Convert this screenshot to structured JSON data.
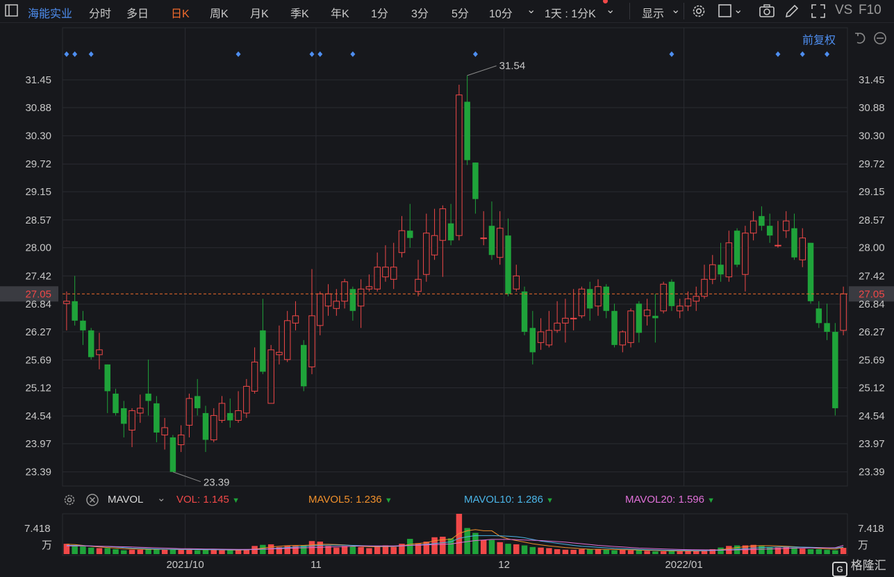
{
  "toolbar": {
    "stock_name": "海能实业",
    "tabs": [
      "分时",
      "多日",
      "日K",
      "周K",
      "月K",
      "季K",
      "年K",
      "1分",
      "3分",
      "5分",
      "10分"
    ],
    "active_tab": "日K",
    "period_select": "1天 : 1分K",
    "display_label": "显示",
    "vs_label": "VS",
    "f10_label": "F10"
  },
  "fuquan_label": "前复权",
  "current_price_label": "27.05",
  "price_axis_ticks": [
    "31.45",
    "30.88",
    "30.30",
    "29.72",
    "29.15",
    "28.57",
    "28.00",
    "27.42",
    "26.84",
    "26.27",
    "25.69",
    "25.12",
    "24.54",
    "23.97",
    "23.39"
  ],
  "high_marker": "31.54",
  "low_marker": "23.39",
  "mavol": {
    "indicator": "MAVOL",
    "vol_label": "VOL:",
    "vol_value": "1.145",
    "ma5_label": "MAVOL5:",
    "ma5_value": "1.236",
    "ma10_label": "MAVOL10:",
    "ma10_value": "1.286",
    "ma20_label": "MAVOL20:",
    "ma20_value": "1.596"
  },
  "volume_axis": {
    "max_label": "7.418",
    "unit": "万"
  },
  "x_axis_labels": [
    "2021/10",
    "11",
    "12",
    "2022/01"
  ],
  "watermark": "格隆汇",
  "colors": {
    "up": "#f04848",
    "down": "#1fa33a",
    "bg": "#17181c",
    "grid": "#2a2b31",
    "accent": "#4e8ef0",
    "price_line": "#f06a2c"
  },
  "chart_data": {
    "type": "candlestick",
    "price_range": [
      23.1,
      31.95
    ],
    "ohlc": [
      [
        26.85,
        26.9,
        26.3,
        27.1
      ],
      [
        26.9,
        26.5,
        26.4,
        27.42
      ],
      [
        26.5,
        26.3,
        26.0,
        26.7
      ],
      [
        26.3,
        25.75,
        25.7,
        26.35
      ],
      [
        25.8,
        25.9,
        25.5,
        26.25
      ],
      [
        25.6,
        25.05,
        24.6,
        25.6
      ],
      [
        25.0,
        24.6,
        24.55,
        25.1
      ],
      [
        24.7,
        24.38,
        24.1,
        24.85
      ],
      [
        24.25,
        24.65,
        23.9,
        24.7
      ],
      [
        24.6,
        24.7,
        24.4,
        24.98
      ],
      [
        25.0,
        24.85,
        24.55,
        25.7
      ],
      [
        24.8,
        24.2,
        24.0,
        24.95
      ],
      [
        24.15,
        24.3,
        23.85,
        24.5
      ],
      [
        24.1,
        23.39,
        23.39,
        24.15
      ],
      [
        23.95,
        24.15,
        23.8,
        24.35
      ],
      [
        24.35,
        24.9,
        24.1,
        25.0
      ],
      [
        24.95,
        24.7,
        24.55,
        25.3
      ],
      [
        24.6,
        24.05,
        23.8,
        24.75
      ],
      [
        24.05,
        24.55,
        24.0,
        24.7
      ],
      [
        24.45,
        24.8,
        24.4,
        24.95
      ],
      [
        24.6,
        24.45,
        24.3,
        24.9
      ],
      [
        24.45,
        24.65,
        24.4,
        25.05
      ],
      [
        24.6,
        25.15,
        24.5,
        25.3
      ],
      [
        25.05,
        25.65,
        25.0,
        25.95
      ],
      [
        26.3,
        25.45,
        25.4,
        26.95
      ],
      [
        24.8,
        25.9,
        24.8,
        26.0
      ],
      [
        25.8,
        25.85,
        25.6,
        26.4
      ],
      [
        25.7,
        26.5,
        25.65,
        26.7
      ],
      [
        26.45,
        26.6,
        26.3,
        26.9
      ],
      [
        26.0,
        25.15,
        25.05,
        26.1
      ],
      [
        25.55,
        26.6,
        25.4,
        27.56
      ],
      [
        26.4,
        27.05,
        26.2,
        27.1
      ],
      [
        26.8,
        27.05,
        26.6,
        27.25
      ],
      [
        26.75,
        26.9,
        26.6,
        27.15
      ],
      [
        26.9,
        27.3,
        26.75,
        27.36
      ],
      [
        27.15,
        26.7,
        26.5,
        27.2
      ],
      [
        26.8,
        27.15,
        26.35,
        27.35
      ],
      [
        27.15,
        27.2,
        27.1,
        27.45
      ],
      [
        27.15,
        27.6,
        27.1,
        27.9
      ],
      [
        27.4,
        27.6,
        27.3,
        28.05
      ],
      [
        27.35,
        27.6,
        27.15,
        28.1
      ],
      [
        27.9,
        28.35,
        27.8,
        28.65
      ],
      [
        28.35,
        28.2,
        28.0,
        28.9
      ],
      [
        27.1,
        27.35,
        27.0,
        27.75
      ],
      [
        27.45,
        28.3,
        27.3,
        28.7
      ],
      [
        27.85,
        28.25,
        27.75,
        28.8
      ],
      [
        28.15,
        28.8,
        27.4,
        28.87
      ],
      [
        28.5,
        28.15,
        28.05,
        28.9
      ],
      [
        28.25,
        31.14,
        28.15,
        31.35
      ],
      [
        31.0,
        29.8,
        29.7,
        31.54
      ],
      [
        29.75,
        29.0,
        28.7,
        29.75
      ],
      [
        28.2,
        28.2,
        28.05,
        28.75
      ],
      [
        28.45,
        27.85,
        27.75,
        28.95
      ],
      [
        27.8,
        28.4,
        27.65,
        28.75
      ],
      [
        28.25,
        27.05,
        27.0,
        28.6
      ],
      [
        27.15,
        27.42,
        27.1,
        27.65
      ],
      [
        27.1,
        26.27,
        26.2,
        27.2
      ],
      [
        26.35,
        25.85,
        25.6,
        26.7
      ],
      [
        26.05,
        26.27,
        25.9,
        26.55
      ],
      [
        26.0,
        26.3,
        25.95,
        26.7
      ],
      [
        26.3,
        26.45,
        26.25,
        26.9
      ],
      [
        26.45,
        26.55,
        26.05,
        26.95
      ],
      [
        26.55,
        26.55,
        26.3,
        27.15
      ],
      [
        26.6,
        27.15,
        26.55,
        27.2
      ],
      [
        27.15,
        26.75,
        26.5,
        27.3
      ],
      [
        26.8,
        27.2,
        26.6,
        27.35
      ],
      [
        27.2,
        26.7,
        26.55,
        27.25
      ],
      [
        26.7,
        26.0,
        25.95,
        26.85
      ],
      [
        26.0,
        26.27,
        25.85,
        26.3
      ],
      [
        26.05,
        26.7,
        25.95,
        26.75
      ],
      [
        26.85,
        26.25,
        26.05,
        26.9
      ],
      [
        26.6,
        26.72,
        26.4,
        26.95
      ],
      [
        26.6,
        26.55,
        26.05,
        27.05
      ],
      [
        26.7,
        27.25,
        26.65,
        27.3
      ],
      [
        27.3,
        26.8,
        26.7,
        27.35
      ],
      [
        26.7,
        26.8,
        26.55,
        26.95
      ],
      [
        26.8,
        26.95,
        26.7,
        27.1
      ],
      [
        26.9,
        27.0,
        26.7,
        27.2
      ],
      [
        27.0,
        27.35,
        26.95,
        27.65
      ],
      [
        27.35,
        27.65,
        27.25,
        27.85
      ],
      [
        27.65,
        27.45,
        27.3,
        28.1
      ],
      [
        27.4,
        28.1,
        27.3,
        28.35
      ],
      [
        28.35,
        27.65,
        27.6,
        28.4
      ],
      [
        27.45,
        28.3,
        27.1,
        28.45
      ],
      [
        28.3,
        28.55,
        28.15,
        28.75
      ],
      [
        28.65,
        28.45,
        28.35,
        28.85
      ],
      [
        28.45,
        28.25,
        28.1,
        28.7
      ],
      [
        28.05,
        28.05,
        28.0,
        28.55
      ],
      [
        28.35,
        28.55,
        28.2,
        28.75
      ],
      [
        28.4,
        27.8,
        27.75,
        28.7
      ],
      [
        27.75,
        28.2,
        27.6,
        28.4
      ],
      [
        28.1,
        26.9,
        26.85,
        28.1
      ],
      [
        26.75,
        26.45,
        26.35,
        26.9
      ],
      [
        26.45,
        26.27,
        26.1,
        26.85
      ],
      [
        26.27,
        24.7,
        24.55,
        26.45
      ],
      [
        26.3,
        27.05,
        26.2,
        27.2
      ]
    ],
    "volume_range": [
      0,
      7.418
    ],
    "volumes": [
      1.9,
      1.6,
      1.4,
      1.2,
      1.1,
      1.1,
      0.9,
      0.7,
      0.8,
      0.8,
      1.0,
      0.9,
      0.8,
      0.9,
      0.8,
      0.8,
      0.7,
      0.8,
      0.8,
      0.7,
      0.7,
      0.7,
      0.9,
      1.5,
      1.7,
      1.8,
      1.3,
      1.6,
      1.5,
      1.6,
      2.4,
      2.3,
      1.5,
      1.2,
      1.5,
      1.4,
      1.3,
      1.1,
      1.4,
      1.6,
      1.3,
      1.9,
      2.8,
      2.0,
      2.3,
      3.1,
      3.2,
      2.9,
      7.418,
      4.8,
      3.9,
      2.6,
      2.6,
      2.2,
      1.9,
      1.8,
      1.6,
      1.3,
      1.2,
      1.1,
      0.9,
      0.8,
      0.8,
      0.9,
      0.9,
      0.9,
      0.8,
      0.7,
      0.8,
      0.7,
      0.7,
      0.6,
      0.5,
      0.5,
      0.6,
      0.5,
      0.6,
      0.6,
      0.7,
      0.9,
      1.2,
      1.5,
      1.6,
      1.6,
      1.7,
      1.6,
      1.3,
      1.2,
      1.3,
      1.2,
      1.0,
      0.9,
      0.9,
      0.8,
      0.7,
      1.145
    ],
    "ma5": [
      1.8,
      1.75,
      1.6,
      1.45,
      1.3,
      1.2,
      1.1,
      1.0,
      0.95,
      0.9,
      0.9,
      0.88,
      0.86,
      0.86,
      0.85,
      0.84,
      0.82,
      0.8,
      0.8,
      0.78,
      0.76,
      0.74,
      0.78,
      0.9,
      1.1,
      1.3,
      1.45,
      1.55,
      1.6,
      1.6,
      1.7,
      1.8,
      1.8,
      1.75,
      1.7,
      1.55,
      1.45,
      1.35,
      1.35,
      1.4,
      1.4,
      1.5,
      1.8,
      1.95,
      2.1,
      2.45,
      2.65,
      2.7,
      3.8,
      4.3,
      4.5,
      4.3,
      4.3,
      3.3,
      2.8,
      2.5,
      2.2,
      1.9,
      1.7,
      1.5,
      1.35,
      1.2,
      1.1,
      1.0,
      0.9,
      0.88,
      0.86,
      0.84,
      0.8,
      0.78,
      0.76,
      0.7,
      0.66,
      0.62,
      0.6,
      0.58,
      0.57,
      0.58,
      0.62,
      0.7,
      0.8,
      1.0,
      1.2,
      1.35,
      1.5,
      1.55,
      1.55,
      1.5,
      1.45,
      1.35,
      1.25,
      1.15,
      1.05,
      0.98,
      0.9,
      1.236
    ],
    "ma10": [
      1.6,
      1.6,
      1.55,
      1.5,
      1.45,
      1.4,
      1.3,
      1.2,
      1.1,
      1.05,
      1.0,
      0.95,
      0.9,
      0.88,
      0.87,
      0.86,
      0.84,
      0.83,
      0.82,
      0.8,
      0.8,
      0.79,
      0.8,
      0.85,
      0.9,
      1.0,
      1.1,
      1.2,
      1.3,
      1.4,
      1.5,
      1.6,
      1.65,
      1.65,
      1.65,
      1.6,
      1.55,
      1.5,
      1.45,
      1.45,
      1.45,
      1.5,
      1.6,
      1.7,
      1.8,
      1.95,
      2.1,
      2.25,
      2.9,
      3.2,
      3.4,
      3.4,
      3.4,
      3.35,
      3.3,
      3.2,
      3.0,
      2.7,
      2.4,
      2.2,
      2.0,
      1.8,
      1.6,
      1.45,
      1.35,
      1.25,
      1.15,
      1.05,
      0.98,
      0.92,
      0.86,
      0.8,
      0.76,
      0.72,
      0.7,
      0.68,
      0.66,
      0.64,
      0.64,
      0.66,
      0.7,
      0.8,
      0.9,
      1.0,
      1.1,
      1.2,
      1.25,
      1.3,
      1.3,
      1.3,
      1.28,
      1.25,
      1.2,
      1.15,
      1.1,
      1.286
    ],
    "ma20": [
      1.5,
      1.5,
      1.5,
      1.48,
      1.45,
      1.42,
      1.38,
      1.34,
      1.3,
      1.25,
      1.2,
      1.15,
      1.1,
      1.05,
      1.0,
      0.98,
      0.96,
      0.94,
      0.92,
      0.9,
      0.88,
      0.87,
      0.86,
      0.88,
      0.92,
      0.96,
      1.0,
      1.05,
      1.1,
      1.15,
      1.2,
      1.25,
      1.3,
      1.35,
      1.4,
      1.45,
      1.5,
      1.5,
      1.5,
      1.5,
      1.5,
      1.55,
      1.6,
      1.65,
      1.7,
      1.75,
      1.8,
      1.85,
      2.1,
      2.3,
      2.5,
      2.6,
      2.7,
      2.7,
      2.7,
      2.65,
      2.6,
      2.55,
      2.5,
      2.4,
      2.3,
      2.2,
      2.05,
      1.9,
      1.75,
      1.6,
      1.5,
      1.4,
      1.3,
      1.2,
      1.1,
      1.05,
      1.0,
      0.95,
      0.9,
      0.85,
      0.82,
      0.8,
      0.78,
      0.76,
      0.75,
      0.76,
      0.78,
      0.8,
      0.85,
      0.9,
      0.95,
      1.0,
      1.05,
      1.1,
      1.12,
      1.14,
      1.15,
      1.16,
      1.17,
      1.596
    ],
    "event_marker_indices": [
      0,
      1,
      3,
      21,
      30,
      31,
      35,
      50,
      74,
      87,
      90,
      93
    ]
  }
}
